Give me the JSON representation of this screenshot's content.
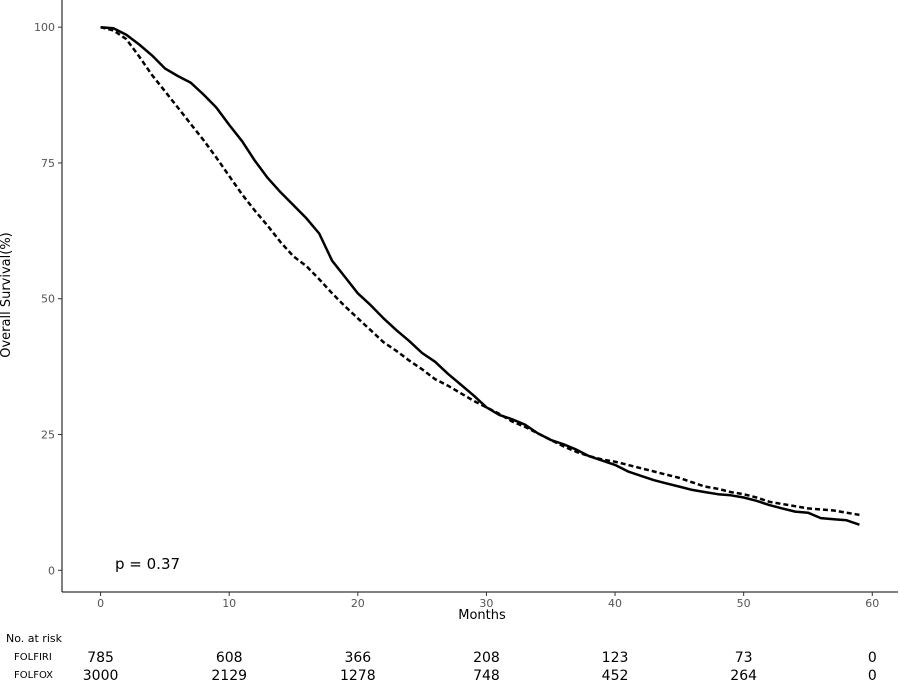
{
  "chart_data": {
    "type": "line",
    "title": "",
    "xlabel": "Months",
    "ylabel": "Overall Survival(%)",
    "xlim": [
      -3,
      62
    ],
    "ylim": [
      -4,
      105
    ],
    "xticks": [
      0,
      10,
      20,
      30,
      40,
      50,
      60
    ],
    "yticks": [
      0,
      25,
      50,
      75,
      100
    ],
    "grid": false,
    "annotation": "p = 0.37",
    "series": [
      {
        "style": "solid",
        "x": [
          0,
          1,
          2,
          3,
          4,
          5,
          6,
          7,
          8,
          9,
          10,
          11,
          12,
          13,
          14,
          15,
          16,
          17,
          18,
          19,
          20,
          21,
          22,
          23,
          24,
          25,
          26,
          27,
          28,
          29,
          30,
          31,
          32,
          33,
          34,
          35,
          36,
          37,
          38,
          39,
          40,
          41,
          42,
          43,
          44,
          45,
          46,
          47,
          48,
          49,
          50,
          51,
          52,
          53,
          54,
          55,
          56,
          57,
          58,
          59
        ],
        "y": [
          100,
          99.8,
          98.6,
          96.8,
          94.8,
          92.4,
          91,
          89.8,
          87.6,
          85.2,
          82,
          79,
          75.4,
          72.2,
          69.6,
          67.2,
          64.8,
          62,
          57,
          54,
          51,
          48.8,
          46.4,
          44.2,
          42.2,
          40,
          38.4,
          36.2,
          34.2,
          32.2,
          30,
          28.6,
          27.8,
          26.8,
          25.2,
          24,
          23.2,
          22.2,
          21,
          20.2,
          19.4,
          18.2,
          17.4,
          16.6,
          16,
          15.4,
          14.8,
          14.4,
          14,
          13.8,
          13.4,
          12.8,
          12,
          11.4,
          10.8,
          10.6,
          9.6,
          9.4,
          9.2,
          8.4
        ]
      },
      {
        "style": "dashed",
        "x": [
          0,
          1,
          2,
          3,
          4,
          5,
          6,
          7,
          8,
          9,
          10,
          11,
          12,
          13,
          14,
          15,
          16,
          17,
          18,
          19,
          20,
          21,
          22,
          23,
          24,
          25,
          26,
          27,
          28,
          29,
          30,
          31,
          32,
          33,
          34,
          35,
          36,
          37,
          38,
          39,
          40,
          41,
          42,
          43,
          44,
          45,
          46,
          47,
          48,
          49,
          50,
          51,
          52,
          53,
          54,
          55,
          56,
          57,
          58,
          59
        ],
        "y": [
          100,
          99.4,
          97.8,
          94.6,
          91.2,
          88.2,
          85.2,
          82.2,
          79.2,
          76,
          72.6,
          69.2,
          66.2,
          63.4,
          60.4,
          57.8,
          56,
          53.6,
          51,
          48.6,
          46.4,
          44.2,
          42,
          40.4,
          38.6,
          37,
          35.2,
          34,
          32.6,
          31.2,
          30,
          28.8,
          27.4,
          26.4,
          25.2,
          24,
          22.8,
          21.8,
          21,
          20.4,
          20,
          19.4,
          18.8,
          18.2,
          17.6,
          17,
          16.2,
          15.4,
          15,
          14.4,
          14,
          13.4,
          12.6,
          12.2,
          11.8,
          11.4,
          11.2,
          11,
          10.6,
          10.2
        ]
      }
    ],
    "risk_table": {
      "title": "No. at risk",
      "times": [
        0,
        10,
        20,
        30,
        40,
        50,
        60
      ],
      "rows": [
        {
          "name": "FOLFIRI",
          "values": [
            785,
            608,
            366,
            208,
            123,
            73,
            0
          ]
        },
        {
          "name": "FOLFOX",
          "values": [
            3000,
            2129,
            1278,
            748,
            452,
            264,
            0
          ]
        }
      ]
    }
  }
}
